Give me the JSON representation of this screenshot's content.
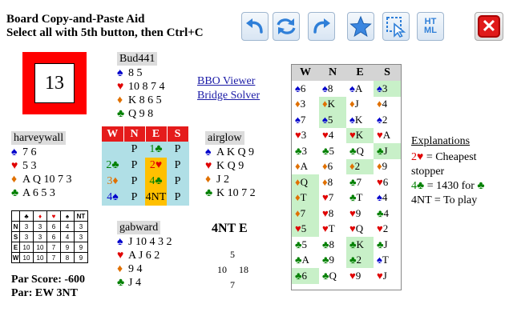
{
  "header": {
    "title": "Board Copy-and-Paste Aid",
    "subtitle": "Select all with 5th button, then Ctrl+C"
  },
  "toolbar": {
    "buttons": [
      {
        "name": "undo-icon"
      },
      {
        "name": "swap-arrows-icon"
      },
      {
        "name": "redo-icon"
      },
      {
        "name": "star-icon"
      },
      {
        "name": "select-cursor-icon"
      },
      {
        "name": "html-icon",
        "label_top": "HT",
        "label_bottom": "ML"
      }
    ],
    "close_label": "✕",
    "accent": "#2f7fd8"
  },
  "board": {
    "number": "13",
    "color": "#ff0000"
  },
  "suits": {
    "spade": "♠",
    "heart": "♥",
    "diamond": "♦",
    "club": "♣"
  },
  "hands": {
    "north": {
      "name": "Bud441",
      "spades": "8 5",
      "hearts": "10 8 7 4",
      "diamonds": "K 8 6 5",
      "clubs": "Q 9 8"
    },
    "west": {
      "name": "harveywall",
      "spades": "7 6",
      "hearts": "5 3",
      "diamonds": "A Q 10 7 3",
      "clubs": "A 6 5 3"
    },
    "east": {
      "name": "airglow",
      "spades": "A K Q 9",
      "hearts": "K Q 9",
      "diamonds": "J 2",
      "clubs": "K 10 7 2"
    },
    "south": {
      "name": "gabward",
      "spades": "J 10 4 3 2",
      "hearts": "A J 6 2",
      "diamonds": "9 4",
      "clubs": "J 4"
    }
  },
  "links": {
    "viewer": "BBO Viewer",
    "solver": "Bridge Solver"
  },
  "auction": {
    "headers": [
      "W",
      "N",
      "E",
      "S"
    ],
    "rows": [
      [
        "",
        "P",
        "1♣",
        "P"
      ],
      [
        "2♣",
        "P",
        "2♥",
        "P"
      ],
      [
        "3♦",
        "P",
        "4♣",
        "P"
      ],
      [
        "4♠",
        "P",
        "4NT",
        "P"
      ]
    ]
  },
  "par_table": {
    "suit_headers": [
      "♣",
      "♦",
      "♥",
      "♠",
      "NT"
    ],
    "rows": [
      {
        "seat": "N",
        "values": [
          "3",
          "3",
          "6",
          "4",
          "3"
        ]
      },
      {
        "seat": "S",
        "values": [
          "3",
          "3",
          "6",
          "4",
          "3"
        ]
      },
      {
        "seat": "E",
        "values": [
          "10",
          "10",
          "7",
          "9",
          "9"
        ]
      },
      {
        "seat": "W",
        "values": [
          "10",
          "10",
          "7",
          "8",
          "9"
        ]
      }
    ]
  },
  "par": {
    "score": "Par Score: -600",
    "contract": "Par: EW 3NT"
  },
  "contract": "4NT E",
  "tricks": {
    "north": "5",
    "west": "10",
    "east": "18",
    "south": "7"
  },
  "play": {
    "headers": [
      "W",
      "N",
      "E",
      "S"
    ],
    "tricks": [
      [
        {
          "s": "♠",
          "r": "6",
          "c": "s"
        },
        {
          "s": "♠",
          "r": "8",
          "c": "s"
        },
        {
          "s": "♠",
          "r": "A",
          "c": "s"
        },
        {
          "s": "♠",
          "r": "3",
          "c": "s",
          "hl": true
        }
      ],
      [
        {
          "s": "♦",
          "r": "3",
          "c": "d"
        },
        {
          "s": "♦",
          "r": "K",
          "c": "d",
          "hl": true
        },
        {
          "s": "♦",
          "r": "J",
          "c": "d"
        },
        {
          "s": "♦",
          "r": "4",
          "c": "d"
        }
      ],
      [
        {
          "s": "♠",
          "r": "7",
          "c": "s"
        },
        {
          "s": "♠",
          "r": "5",
          "c": "s",
          "hl": true
        },
        {
          "s": "♠",
          "r": "K",
          "c": "s"
        },
        {
          "s": "♠",
          "r": "2",
          "c": "s"
        }
      ],
      [
        {
          "s": "♥",
          "r": "3",
          "c": "h"
        },
        {
          "s": "♥",
          "r": "4",
          "c": "h"
        },
        {
          "s": "♥",
          "r": "K",
          "c": "h",
          "hl": true
        },
        {
          "s": "♥",
          "r": "A",
          "c": "h"
        }
      ],
      [
        {
          "s": "♣",
          "r": "3",
          "c": "c"
        },
        {
          "s": "♣",
          "r": "5",
          "c": "c"
        },
        {
          "s": "♣",
          "r": "Q",
          "c": "c"
        },
        {
          "s": "♣",
          "r": "J",
          "c": "c",
          "hl": true
        }
      ],
      [
        {
          "s": "♦",
          "r": "A",
          "c": "d"
        },
        {
          "s": "♦",
          "r": "6",
          "c": "d"
        },
        {
          "s": "♦",
          "r": "2",
          "c": "d",
          "hl": true
        },
        {
          "s": "♦",
          "r": "9",
          "c": "d"
        }
      ],
      [
        {
          "s": "♦",
          "r": "Q",
          "c": "d",
          "hl": true
        },
        {
          "s": "♦",
          "r": "8",
          "c": "d"
        },
        {
          "s": "♣",
          "r": "7",
          "c": "c"
        },
        {
          "s": "♥",
          "r": "6",
          "c": "h"
        }
      ],
      [
        {
          "s": "♦",
          "r": "T",
          "c": "d",
          "hl": true
        },
        {
          "s": "♥",
          "r": "7",
          "c": "h"
        },
        {
          "s": "♣",
          "r": "T",
          "c": "c"
        },
        {
          "s": "♠",
          "r": "4",
          "c": "s"
        }
      ],
      [
        {
          "s": "♦",
          "r": "7",
          "c": "d",
          "hl": true
        },
        {
          "s": "♥",
          "r": "8",
          "c": "h"
        },
        {
          "s": "♥",
          "r": "9",
          "c": "h"
        },
        {
          "s": "♣",
          "r": "4",
          "c": "c"
        }
      ],
      [
        {
          "s": "♥",
          "r": "5",
          "c": "h",
          "hl": true
        },
        {
          "s": "♥",
          "r": "T",
          "c": "h"
        },
        {
          "s": "♥",
          "r": "Q",
          "c": "h"
        },
        {
          "s": "♥",
          "r": "2",
          "c": "h"
        }
      ],
      [
        {
          "s": "♣",
          "r": "5",
          "c": "c"
        },
        {
          "s": "♣",
          "r": "8",
          "c": "c"
        },
        {
          "s": "♣",
          "r": "K",
          "c": "c",
          "hl": true
        },
        {
          "s": "♣",
          "r": "J",
          "c": "c"
        }
      ],
      [
        {
          "s": "♣",
          "r": "A",
          "c": "c"
        },
        {
          "s": "♣",
          "r": "9",
          "c": "c"
        },
        {
          "s": "♣",
          "r": "2",
          "c": "c",
          "hl": true
        },
        {
          "s": "♠",
          "r": "T",
          "c": "s"
        }
      ],
      [
        {
          "s": "♣",
          "r": "6",
          "c": "c",
          "hl": true
        },
        {
          "s": "♣",
          "r": "Q",
          "c": "c"
        },
        {
          "s": "♥",
          "r": "9",
          "c": "h"
        },
        {
          "s": "♥",
          "r": "J",
          "c": "h"
        }
      ]
    ]
  },
  "explanations": {
    "title": "Explanations",
    "items": [
      {
        "bid": "2♥",
        "suit_class": "h",
        "text": " = Cheapest"
      },
      {
        "bid": "",
        "suit_class": "",
        "text": "stopper"
      },
      {
        "bid": "4♣",
        "suit_class": "c",
        "text": " = 1430 for ",
        "tail": "♣"
      },
      {
        "bid": "4NT",
        "suit_class": "",
        "text": " = To play"
      }
    ]
  }
}
